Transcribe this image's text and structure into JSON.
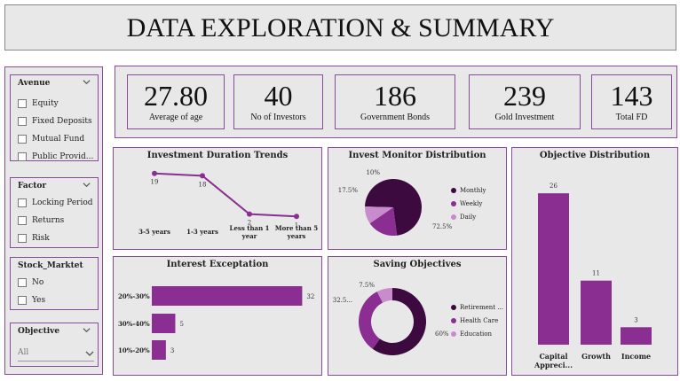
{
  "header": {
    "title": "DATA EXPLORATION & SUMMARY"
  },
  "slicers": {
    "avenue": {
      "title": "Avenue",
      "options": [
        "Equity",
        "Fixed Deposits",
        "Mutual Fund",
        "Public Provid..."
      ]
    },
    "factor": {
      "title": "Factor",
      "options": [
        "Locking Period",
        "Returns",
        "Risk"
      ]
    },
    "stock_market": {
      "title": "Stock_Marktet",
      "options": [
        "No",
        "Yes"
      ]
    },
    "objective": {
      "title": "Objective",
      "selected": "All"
    }
  },
  "kpis": [
    {
      "value": "27.80",
      "label": "Average of age"
    },
    {
      "value": "40",
      "label": "No of Investors"
    },
    {
      "value": "186",
      "label": "Government Bonds"
    },
    {
      "value": "239",
      "label": "Gold Investment"
    },
    {
      "value": "143",
      "label": "Total FD"
    }
  ],
  "colors": {
    "dark": "#3d0a3f",
    "mid": "#8b2e91",
    "light": "#c88ccd",
    "border": "#8a4a9a"
  },
  "chart_data": [
    {
      "type": "line",
      "title": "Investment Duration Trends",
      "categories": [
        "3-5 years",
        "1-3 years",
        "Less than 1 year",
        "More than 5 years"
      ],
      "values": [
        19,
        18,
        2,
        1
      ],
      "ylim": [
        0,
        20
      ]
    },
    {
      "type": "pie",
      "title": "Invest Monitor Distribution",
      "labels": [
        "Monthly",
        "Weekly",
        "Daily"
      ],
      "values": [
        72.5,
        17.5,
        10
      ],
      "value_labels": [
        "72.5%",
        "17.5%",
        "10%"
      ],
      "legend": "right"
    },
    {
      "type": "bar",
      "title": "Objective Distribution",
      "categories": [
        "Capital Appreci...",
        "Growth",
        "Income"
      ],
      "values": [
        26,
        11,
        3
      ],
      "ylim": [
        0,
        28
      ]
    },
    {
      "type": "bar",
      "orientation": "horizontal",
      "title": "Interest Exceptation",
      "categories": [
        "20%-30%",
        "30%-40%",
        "10%-20%"
      ],
      "values": [
        32,
        5,
        3
      ],
      "xlim": [
        0,
        34
      ]
    },
    {
      "type": "pie",
      "donut": true,
      "title": "Saving Objectives",
      "labels": [
        "Retirement ...",
        "Health Care",
        "Education"
      ],
      "values": [
        60,
        32.5,
        7.5
      ],
      "value_labels": [
        "60%",
        "32.5...",
        "7.5%"
      ],
      "legend": "right"
    }
  ]
}
